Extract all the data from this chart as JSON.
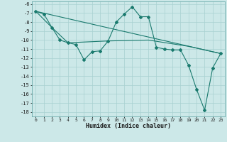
{
  "xlabel": "Humidex (Indice chaleur)",
  "bg_color": "#cce8e8",
  "line_color": "#1a7a6e",
  "xlim": [
    -0.5,
    23.5
  ],
  "ylim": [
    -18.5,
    -5.7
  ],
  "xticks": [
    0,
    1,
    2,
    3,
    4,
    5,
    6,
    7,
    8,
    9,
    10,
    11,
    12,
    13,
    14,
    15,
    16,
    17,
    18,
    19,
    20,
    21,
    22,
    23
  ],
  "yticks": [
    -6,
    -7,
    -8,
    -9,
    -10,
    -11,
    -12,
    -13,
    -14,
    -15,
    -16,
    -17,
    -18
  ],
  "series": [
    [
      0,
      -6.8
    ],
    [
      1,
      -7.1
    ],
    [
      2,
      -8.6
    ],
    [
      3,
      -10.0
    ],
    [
      4,
      -10.3
    ],
    [
      5,
      -10.5
    ],
    [
      6,
      -12.2
    ],
    [
      7,
      -11.3
    ],
    [
      8,
      -11.2
    ],
    [
      9,
      -10.1
    ],
    [
      10,
      -8.0
    ],
    [
      11,
      -7.1
    ],
    [
      12,
      -6.3
    ],
    [
      13,
      -7.4
    ],
    [
      14,
      -7.4
    ],
    [
      15,
      -10.8
    ],
    [
      16,
      -11.0
    ],
    [
      17,
      -11.1
    ],
    [
      18,
      -11.1
    ],
    [
      19,
      -12.8
    ],
    [
      20,
      -15.5
    ],
    [
      21,
      -17.8
    ],
    [
      22,
      -13.1
    ],
    [
      23,
      -11.5
    ]
  ],
  "line2": [
    [
      0,
      -6.8
    ],
    [
      23,
      -11.5
    ]
  ],
  "line3": [
    [
      0,
      -6.8
    ],
    [
      2,
      -8.6
    ],
    [
      4,
      -10.3
    ],
    [
      9,
      -10.1
    ],
    [
      14,
      -10.0
    ],
    [
      19,
      -10.7
    ],
    [
      23,
      -11.5
    ]
  ]
}
